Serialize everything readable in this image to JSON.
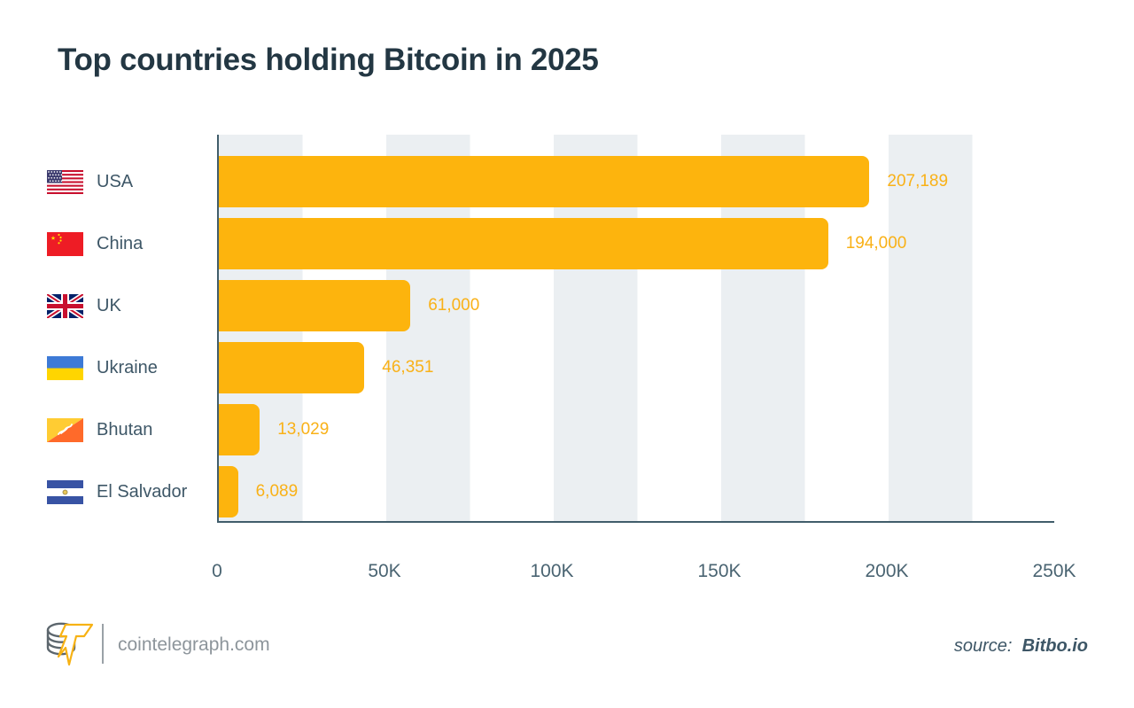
{
  "title": "Top countries holding Bitcoin in 2025",
  "chart_data": {
    "type": "bar",
    "orientation": "horizontal",
    "title": "Top countries holding Bitcoin in 2025",
    "categories": [
      "USA",
      "China",
      "UK",
      "Ukraine",
      "Bhutan",
      "El Salvador"
    ],
    "values": [
      207189,
      194000,
      61000,
      46351,
      13029,
      6089
    ],
    "value_labels": [
      "207,189",
      "194,000",
      "61,000",
      "46,351",
      "13,029",
      "6,089"
    ],
    "flags": [
      "usa-flag",
      "china-flag",
      "uk-flag",
      "ukraine-flag",
      "bhutan-flag",
      "el-salvador-flag"
    ],
    "xlabel": "",
    "ylabel": "",
    "xlim": [
      0,
      250000
    ],
    "x_ticks": [
      {
        "value": 0,
        "label": "0"
      },
      {
        "value": 50000,
        "label": "50K"
      },
      {
        "value": 100000,
        "label": "100K"
      },
      {
        "value": 150000,
        "label": "150K"
      },
      {
        "value": 200000,
        "label": "200K"
      },
      {
        "value": 250000,
        "label": "250K"
      }
    ],
    "grid": "alternating-vertical-bands",
    "legend_position": "left",
    "bar_color": "#FDB40D",
    "value_label_color": "#F9B117",
    "band_color": "#EBEFF2",
    "axis_color": "#415D6B"
  },
  "footer": {
    "logo": "cointelegraph-logo",
    "brand": "cointelegraph.com",
    "source_prefix": "source:",
    "source_name": "Bitbo.io"
  }
}
